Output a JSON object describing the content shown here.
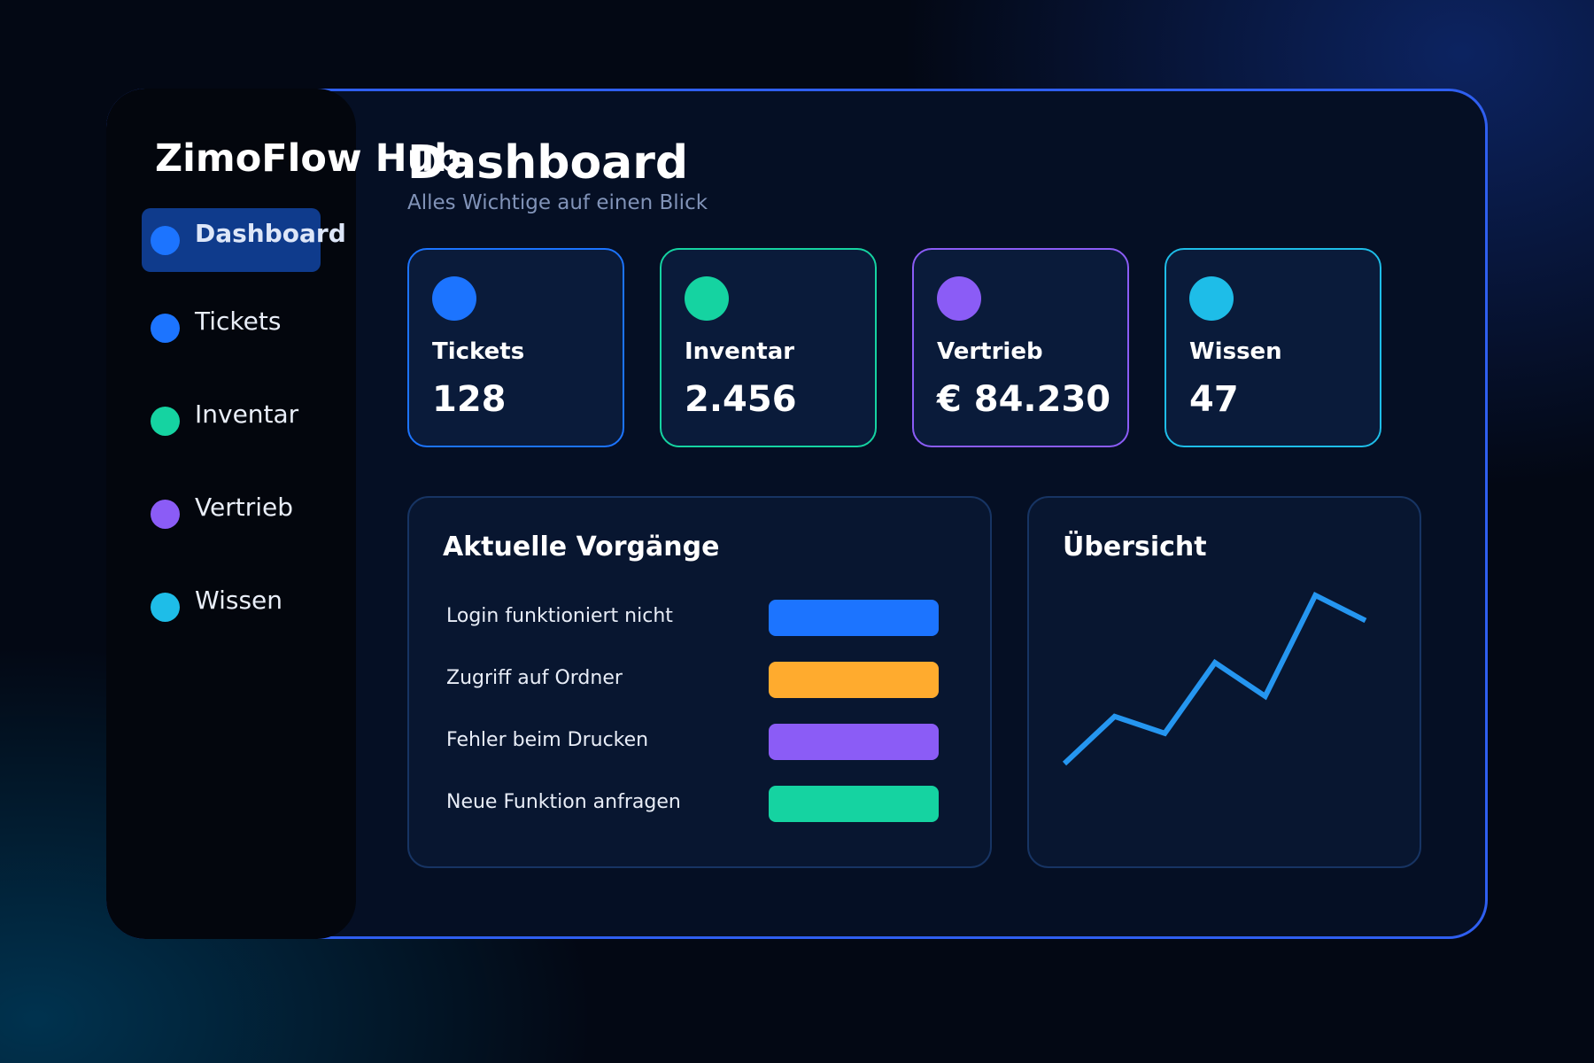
{
  "app": {
    "brand": "ZimoFlow Hub"
  },
  "sidebar": {
    "items": [
      {
        "label": "Dashboard",
        "color": "#1c74ff",
        "active": true
      },
      {
        "label": "Tickets",
        "color": "#1c74ff"
      },
      {
        "label": "Inventar",
        "color": "#15d3a1"
      },
      {
        "label": "Vertrieb",
        "color": "#8b5cf6"
      },
      {
        "label": "Wissen",
        "color": "#1ebde8"
      }
    ]
  },
  "header": {
    "title": "Dashboard",
    "subtitle": "Alles Wichtige auf einen Blick"
  },
  "stats": [
    {
      "label": "Tickets",
      "value": "128",
      "color": "#1c74ff"
    },
    {
      "label": "Inventar",
      "value": "2.456",
      "color": "#15d3a1"
    },
    {
      "label": "Vertrieb",
      "value": "€ 84.230",
      "color": "#8b5cf6"
    },
    {
      "label": "Wissen",
      "value": "47",
      "color": "#1ebde8"
    }
  ],
  "activity": {
    "title": "Aktuelle Vorgänge",
    "items": [
      {
        "label": "Login funktioniert nicht",
        "status_color": "#1c74ff"
      },
      {
        "label": "Zugriff auf Ordner",
        "status_color": "#ffab2e"
      },
      {
        "label": "Fehler beim Drucken",
        "status_color": "#8b5cf6"
      },
      {
        "label": "Neue Funktion anfragen",
        "status_color": "#15d3a1"
      }
    ]
  },
  "overview": {
    "title": "Übersicht",
    "line_color": "#2596f0",
    "chart_data": {
      "type": "line",
      "x": [
        1,
        2,
        3,
        4,
        5,
        6,
        7
      ],
      "values": [
        0,
        0.28,
        0.18,
        0.6,
        0.4,
        1,
        0.85
      ]
    }
  }
}
